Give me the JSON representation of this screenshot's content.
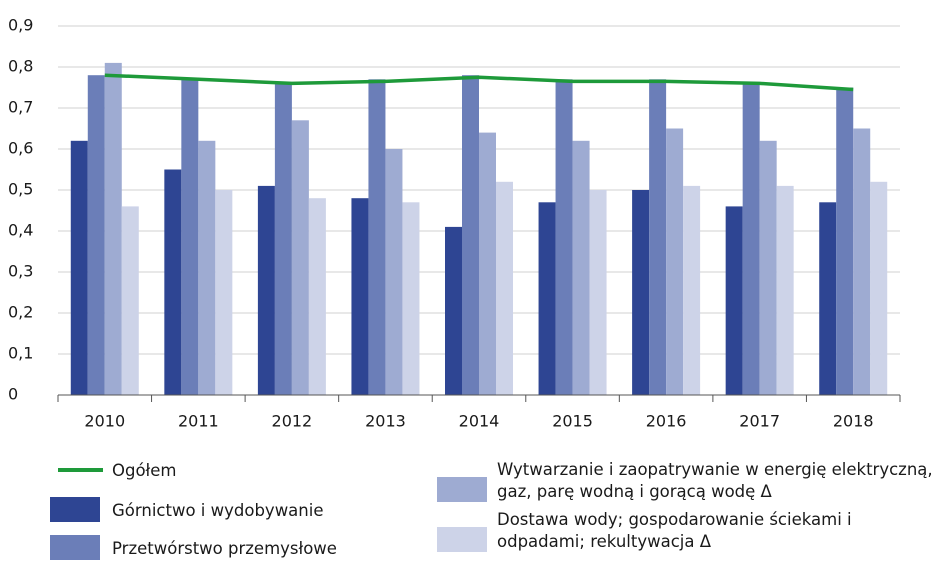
{
  "chart_data": {
    "type": "bar",
    "categories": [
      "2010",
      "2011",
      "2012",
      "2013",
      "2014",
      "2015",
      "2016",
      "2017",
      "2018"
    ],
    "series": [
      {
        "name": "Górnictwo i wydobywanie",
        "color": "#2e4593",
        "values": [
          0.62,
          0.55,
          0.51,
          0.48,
          0.41,
          0.47,
          0.5,
          0.46,
          0.47
        ]
      },
      {
        "name": "Przetwórstwo przemysłowe",
        "color": "#6b7eb8",
        "values": [
          0.78,
          0.77,
          0.76,
          0.77,
          0.78,
          0.77,
          0.77,
          0.76,
          0.75
        ]
      },
      {
        "name": "Wytwarzanie i zaopatrywanie w energię elektryczną, gaz, parę wodną i gorącą wodę Δ",
        "color": "#9eabd2",
        "values": [
          0.81,
          0.62,
          0.67,
          0.6,
          0.64,
          0.62,
          0.65,
          0.62,
          0.65
        ]
      },
      {
        "name": "Dostawa wody; gospodarowanie ściekami i odpadami; rekultywacja Δ",
        "color": "#cdd3e8",
        "values": [
          0.46,
          0.5,
          0.48,
          0.47,
          0.52,
          0.5,
          0.51,
          0.51,
          0.52
        ]
      },
      {
        "name": "Ogółem",
        "type": "line",
        "color": "#1e9a3a",
        "values": [
          0.78,
          0.77,
          0.76,
          0.765,
          0.775,
          0.765,
          0.765,
          0.76,
          0.745
        ]
      }
    ],
    "ylim": [
      0,
      0.9
    ],
    "yticks": [
      0,
      {
        "value": 0.1,
        "label": "0,1"
      },
      {
        "value": 0.2,
        "label": "0,2"
      },
      {
        "value": 0.3,
        "label": "0,3"
      },
      {
        "value": 0.4,
        "label": "0,4"
      },
      {
        "value": 0.5,
        "label": "0,5"
      },
      {
        "value": 0.6,
        "label": "0,6"
      },
      {
        "value": 0.7,
        "label": "0,7"
      },
      {
        "value": 0.8,
        "label": "0,8"
      },
      {
        "value": 0.9,
        "label": "0,9"
      }
    ],
    "grid": true
  }
}
